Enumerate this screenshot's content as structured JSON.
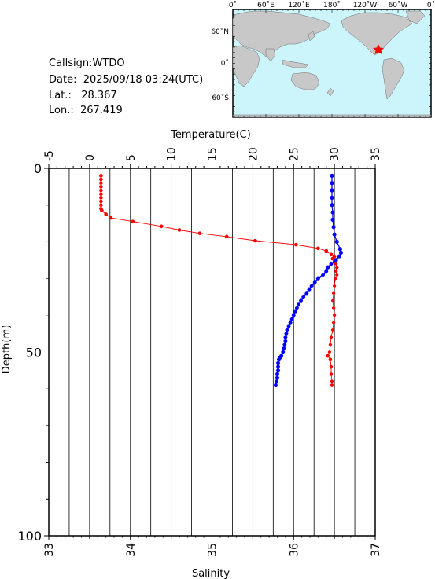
{
  "header": {
    "callsign": "Callsign:WTDO",
    "date": "Date:  2025/09/18 03:24(UTC)",
    "lat": "Lat.:   28.367",
    "lon": "Lon.:  267.419"
  },
  "map": {
    "top_labels": [
      "0˚",
      "60˚E",
      "120˚E",
      "180˚",
      "120˚W",
      "60˚W",
      "0˚"
    ],
    "left_labels": [
      "60˚N",
      "0˚",
      "60˚S"
    ],
    "ocean_color": "#ccf4fb",
    "land_color": "#c8c8c8",
    "marker_color": "#ff0000"
  },
  "chart_data": {
    "type": "line",
    "top_axis_label": "Temperature(C)",
    "bottom_axis_label": "Salinity",
    "left_axis_label": "Depth(m)",
    "temperature_ticks": [
      "-5",
      "0",
      "5",
      "10",
      "15",
      "20",
      "25",
      "30",
      "35"
    ],
    "salinity_ticks": [
      "33",
      "34",
      "35",
      "36",
      "37"
    ],
    "depth_ticks": [
      "0",
      "50",
      "100"
    ],
    "temperature_range": [
      -5,
      35
    ],
    "salinity_range": [
      33,
      37
    ],
    "depth_range": [
      0,
      100
    ],
    "grid": true,
    "series": [
      {
        "quantity": "temperature",
        "color": "#ff0000",
        "points": [
          [
            1.4,
            2
          ],
          [
            1.4,
            3
          ],
          [
            1.4,
            4
          ],
          [
            1.4,
            5
          ],
          [
            1.4,
            6
          ],
          [
            1.4,
            7
          ],
          [
            1.4,
            8
          ],
          [
            1.4,
            9
          ],
          [
            1.4,
            10
          ],
          [
            1.4,
            11
          ],
          [
            1.5,
            11.5
          ],
          [
            2.0,
            12.5
          ],
          [
            2.6,
            13.5
          ],
          [
            5.3,
            14.5
          ],
          [
            8.8,
            15.8
          ],
          [
            11.0,
            16.8
          ],
          [
            13.5,
            17.7
          ],
          [
            16.8,
            18.6
          ],
          [
            20.3,
            19.7
          ],
          [
            25.3,
            20.8
          ],
          [
            28.0,
            21.8
          ],
          [
            29.0,
            22.5
          ],
          [
            29.6,
            23.3
          ],
          [
            30.0,
            24.0
          ],
          [
            29.8,
            24.6
          ],
          [
            30.0,
            25.2
          ],
          [
            30.2,
            26.0
          ],
          [
            30.3,
            27.0
          ],
          [
            30.2,
            28.0
          ],
          [
            30.3,
            29.0
          ],
          [
            30.1,
            30.0
          ],
          [
            30.0,
            32.0
          ],
          [
            29.9,
            34.0
          ],
          [
            29.8,
            36.0
          ],
          [
            29.9,
            38.0
          ],
          [
            30.0,
            40.0
          ],
          [
            29.9,
            42.0
          ],
          [
            29.8,
            44.0
          ],
          [
            29.6,
            46.0
          ],
          [
            29.5,
            48.0
          ],
          [
            29.4,
            50.0
          ],
          [
            29.2,
            51.0
          ],
          [
            29.5,
            52.0
          ],
          [
            29.6,
            54.0
          ],
          [
            29.6,
            56.0
          ],
          [
            29.7,
            58.0
          ],
          [
            29.7,
            59.0
          ]
        ]
      },
      {
        "quantity": "salinity",
        "color": "#0000ff",
        "points": [
          [
            36.47,
            2
          ],
          [
            36.47,
            4
          ],
          [
            36.47,
            6
          ],
          [
            36.47,
            8
          ],
          [
            36.47,
            10
          ],
          [
            36.48,
            12
          ],
          [
            36.48,
            14
          ],
          [
            36.49,
            16
          ],
          [
            36.5,
            18
          ],
          [
            36.53,
            20
          ],
          [
            36.57,
            22
          ],
          [
            36.58,
            23
          ],
          [
            36.56,
            24
          ],
          [
            36.52,
            25
          ],
          [
            36.46,
            26
          ],
          [
            36.42,
            27
          ],
          [
            36.4,
            28
          ],
          [
            36.36,
            29
          ],
          [
            36.3,
            30
          ],
          [
            36.26,
            31
          ],
          [
            36.22,
            32
          ],
          [
            36.19,
            33
          ],
          [
            36.16,
            34
          ],
          [
            36.12,
            35
          ],
          [
            36.09,
            36
          ],
          [
            36.06,
            37
          ],
          [
            36.04,
            38
          ],
          [
            36.02,
            39
          ],
          [
            36.0,
            40
          ],
          [
            35.98,
            41
          ],
          [
            35.96,
            42
          ],
          [
            35.94,
            43
          ],
          [
            35.92,
            44
          ],
          [
            35.91,
            45
          ],
          [
            35.9,
            46
          ],
          [
            35.9,
            47
          ],
          [
            35.89,
            48
          ],
          [
            35.88,
            49
          ],
          [
            35.87,
            50
          ],
          [
            35.85,
            51
          ],
          [
            35.83,
            51.5
          ],
          [
            35.82,
            52
          ],
          [
            35.81,
            53
          ],
          [
            35.81,
            54
          ],
          [
            35.81,
            55
          ],
          [
            35.8,
            56
          ],
          [
            35.8,
            57
          ],
          [
            35.79,
            58
          ],
          [
            35.78,
            59
          ]
        ]
      }
    ]
  }
}
